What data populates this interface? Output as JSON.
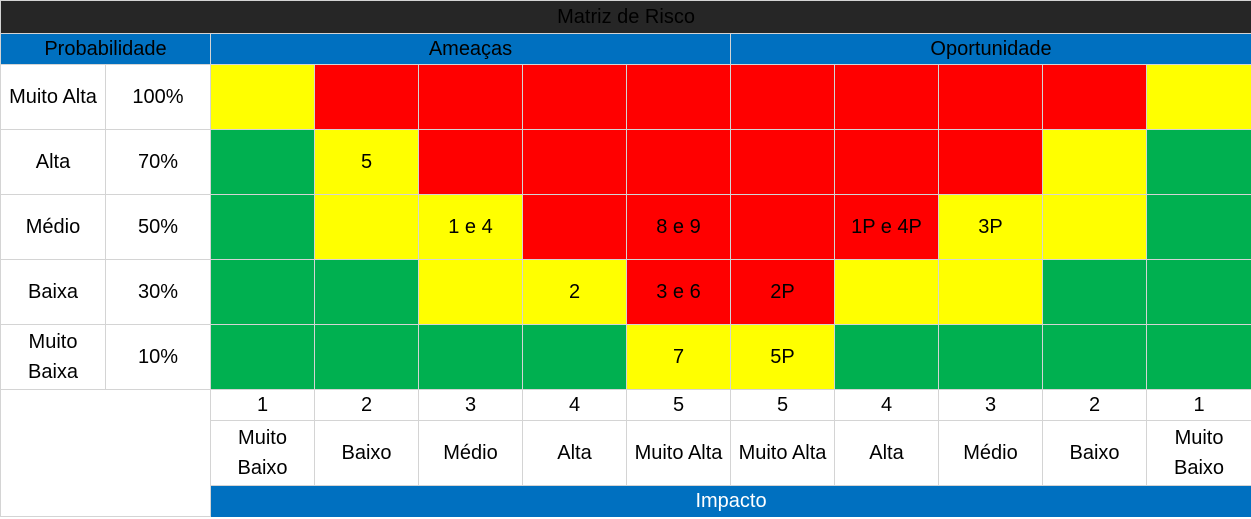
{
  "title": "Matriz de Risco",
  "headers": {
    "probabilidade": "Probabilidade",
    "ameacas": "Ameaças",
    "oportunidade": "Oportunidade",
    "impacto": "Impacto"
  },
  "colors": {
    "yellow": "#ffff00",
    "red": "#ff0000",
    "green": "#00b050",
    "header_blue": "#0070c0",
    "title_bg": "#262626"
  },
  "rows": [
    {
      "label": "Muito Alta",
      "pct": "100%",
      "cells": [
        {
          "c": "y",
          "t": ""
        },
        {
          "c": "r",
          "t": ""
        },
        {
          "c": "r",
          "t": ""
        },
        {
          "c": "r",
          "t": ""
        },
        {
          "c": "r",
          "t": ""
        },
        {
          "c": "r",
          "t": ""
        },
        {
          "c": "r",
          "t": ""
        },
        {
          "c": "r",
          "t": ""
        },
        {
          "c": "r",
          "t": ""
        },
        {
          "c": "y",
          "t": ""
        }
      ]
    },
    {
      "label": "Alta",
      "pct": "70%",
      "cells": [
        {
          "c": "g",
          "t": ""
        },
        {
          "c": "y",
          "t": "5"
        },
        {
          "c": "r",
          "t": ""
        },
        {
          "c": "r",
          "t": ""
        },
        {
          "c": "r",
          "t": ""
        },
        {
          "c": "r",
          "t": ""
        },
        {
          "c": "r",
          "t": ""
        },
        {
          "c": "r",
          "t": ""
        },
        {
          "c": "y",
          "t": ""
        },
        {
          "c": "g",
          "t": ""
        }
      ]
    },
    {
      "label": "Médio",
      "pct": "50%",
      "cells": [
        {
          "c": "g",
          "t": ""
        },
        {
          "c": "y",
          "t": ""
        },
        {
          "c": "y",
          "t": "1 e 4"
        },
        {
          "c": "r",
          "t": ""
        },
        {
          "c": "r",
          "t": "8 e 9"
        },
        {
          "c": "r",
          "t": ""
        },
        {
          "c": "r",
          "t": "1P e 4P"
        },
        {
          "c": "y",
          "t": "3P"
        },
        {
          "c": "y",
          "t": ""
        },
        {
          "c": "g",
          "t": ""
        }
      ]
    },
    {
      "label": "Baixa",
      "pct": "30%",
      "cells": [
        {
          "c": "g",
          "t": ""
        },
        {
          "c": "g",
          "t": ""
        },
        {
          "c": "y",
          "t": ""
        },
        {
          "c": "y",
          "t": "2"
        },
        {
          "c": "r",
          "t": "3 e 6"
        },
        {
          "c": "r",
          "t": "2P"
        },
        {
          "c": "y",
          "t": ""
        },
        {
          "c": "y",
          "t": ""
        },
        {
          "c": "g",
          "t": ""
        },
        {
          "c": "g",
          "t": ""
        }
      ]
    },
    {
      "label": "Muito Baixa",
      "pct": "10%",
      "cells": [
        {
          "c": "g",
          "t": ""
        },
        {
          "c": "g",
          "t": ""
        },
        {
          "c": "g",
          "t": ""
        },
        {
          "c": "g",
          "t": ""
        },
        {
          "c": "y",
          "t": "7"
        },
        {
          "c": "y",
          "t": "5P"
        },
        {
          "c": "g",
          "t": ""
        },
        {
          "c": "g",
          "t": ""
        },
        {
          "c": "g",
          "t": ""
        },
        {
          "c": "g",
          "t": ""
        }
      ]
    }
  ],
  "impact_numbers": [
    "1",
    "2",
    "3",
    "4",
    "5",
    "5",
    "4",
    "3",
    "2",
    "1"
  ],
  "impact_levels": [
    "Muito Baixo",
    "Baixo",
    "Médio",
    "Alta",
    "Muito Alta",
    "Muito Alta",
    "Alta",
    "Médio",
    "Baixo",
    "Muito Baixo"
  ]
}
